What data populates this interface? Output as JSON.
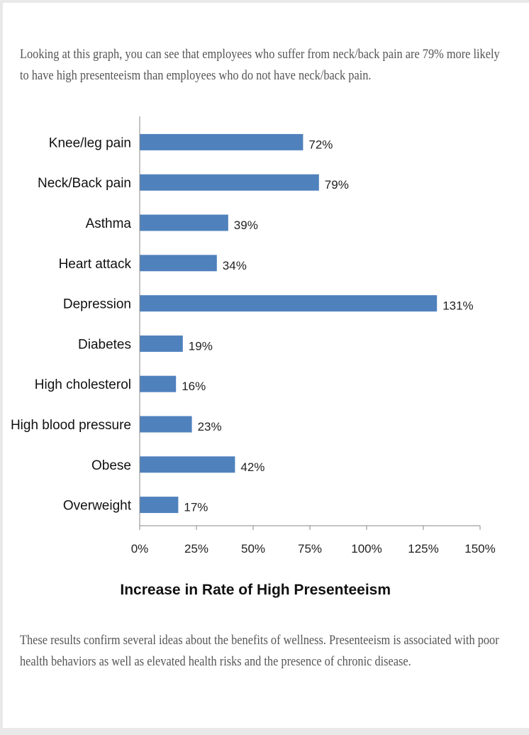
{
  "intro_text": "Looking at this graph, you can see that employees who suffer from neck/back pain are 79% more likely to have high presenteeism than employees who do not have neck/back pain.",
  "outro_text": "These results confirm several ideas about the benefits of wellness.  Presenteeism is associated with poor health behaviors as well as elevated health risks and the presence of chronic disease.",
  "colors": {
    "bar": "#4f81bd",
    "axis": "#888888"
  },
  "chart_data": {
    "type": "bar",
    "orientation": "horizontal",
    "categories": [
      "Knee/leg pain",
      "Neck/Back pain",
      "Asthma",
      "Heart attack",
      "Depression",
      "Diabetes",
      "High cholesterol",
      "High blood pressure",
      "Obese",
      "Overweight"
    ],
    "values": [
      72,
      79,
      39,
      34,
      131,
      19,
      16,
      23,
      42,
      17
    ],
    "value_labels": [
      "72%",
      "79%",
      "39%",
      "34%",
      "131%",
      "19%",
      "16%",
      "23%",
      "42%",
      "17%"
    ],
    "xlabel": "Increase in Rate of High Presenteeism",
    "xlim": [
      0,
      150
    ],
    "xticks": [
      0,
      25,
      50,
      75,
      100,
      125,
      150
    ],
    "xtick_labels": [
      "0%",
      "25%",
      "50%",
      "75%",
      "100%",
      "125%",
      "150%"
    ],
    "grid": false
  }
}
